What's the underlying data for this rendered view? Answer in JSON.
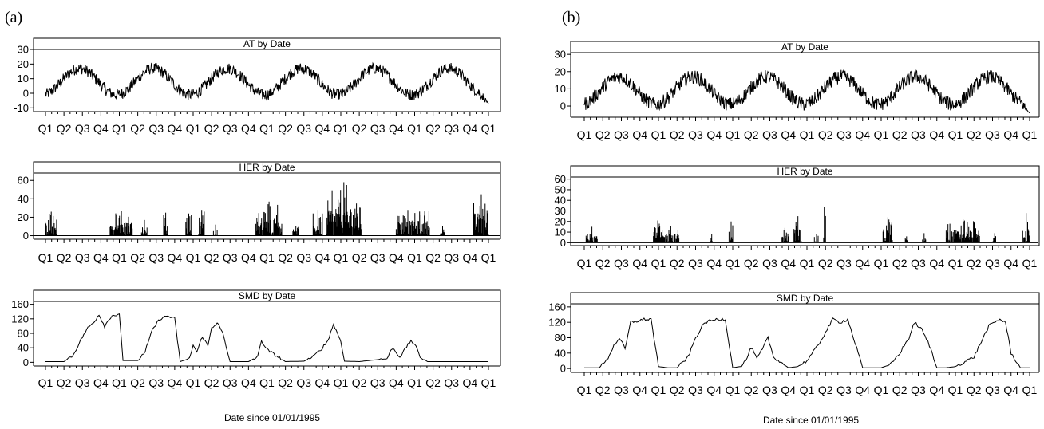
{
  "figure": {
    "panels": [
      {
        "id": "a",
        "label": "(a)",
        "x_axis_caption": "Date since 01/01/1995",
        "charts": [
          {
            "key": "AT",
            "type": "line",
            "title": "AT by Date",
            "ylim": [
              -12,
              30
            ],
            "y_ticks": [
              "30",
              "20",
              "10",
              "0",
              "-10"
            ],
            "y_tick_values": [
              30,
              20,
              10,
              0,
              -10
            ],
            "x_tick_labels": [
              "Q1",
              "Q2",
              "Q3",
              "Q4",
              "Q1",
              "Q2",
              "Q3",
              "Q4",
              "Q1",
              "Q2",
              "Q3",
              "Q4",
              "Q1",
              "Q2",
              "Q3",
              "Q4",
              "Q1",
              "Q2",
              "Q3",
              "Q4",
              "Q1",
              "Q2",
              "Q3",
              "Q4",
              "Q1"
            ],
            "x_axis": "quarters, 1995 Q1 to 2001 Q1",
            "series_profile": {
              "kind": "seasonal",
              "mean": 8,
              "amplitude": 9,
              "noise": 4,
              "end_value": -7
            },
            "color": "#000000"
          },
          {
            "key": "HER",
            "type": "spikes",
            "title": "HER by Date",
            "ylim": [
              -3,
              68
            ],
            "y_ticks": [
              "60",
              "40",
              "20",
              "0"
            ],
            "y_tick_values": [
              60,
              40,
              20,
              0
            ],
            "x_tick_labels": [
              "Q1",
              "Q2",
              "Q3",
              "Q4",
              "Q1",
              "Q2",
              "Q3",
              "Q4",
              "Q1",
              "Q2",
              "Q3",
              "Q4",
              "Q1",
              "Q2",
              "Q3",
              "Q4",
              "Q1",
              "Q2",
              "Q3",
              "Q4",
              "Q1",
              "Q2",
              "Q3",
              "Q4",
              "Q1"
            ],
            "x_axis": "quarters, 1995 Q1 to 2001 Q1",
            "spike_bursts": [
              {
                "start_q": 0.0,
                "end_q": 0.6,
                "max": 26
              },
              {
                "start_q": 3.5,
                "end_q": 4.7,
                "max": 27
              },
              {
                "start_q": 5.2,
                "end_q": 5.5,
                "max": 17
              },
              {
                "start_q": 6.4,
                "end_q": 6.6,
                "max": 25
              },
              {
                "start_q": 7.6,
                "end_q": 7.9,
                "max": 24
              },
              {
                "start_q": 8.3,
                "end_q": 8.6,
                "max": 28
              },
              {
                "start_q": 9.1,
                "end_q": 9.3,
                "max": 12
              },
              {
                "start_q": 11.4,
                "end_q": 12.8,
                "max": 37
              },
              {
                "start_q": 13.4,
                "end_q": 13.7,
                "max": 10
              },
              {
                "start_q": 14.5,
                "end_q": 15.0,
                "max": 28
              },
              {
                "start_q": 15.2,
                "end_q": 17.1,
                "max": 58
              },
              {
                "start_q": 19.0,
                "end_q": 20.8,
                "max": 30
              },
              {
                "start_q": 21.4,
                "end_q": 21.6,
                "max": 10
              },
              {
                "start_q": 23.2,
                "end_q": 24.0,
                "max": 45
              }
            ],
            "color": "#000000"
          },
          {
            "key": "SMD",
            "type": "line",
            "title": "SMD by Date",
            "ylim": [
              -8,
              168
            ],
            "y_ticks": [
              "160",
              "120",
              "80",
              "40",
              "0"
            ],
            "y_tick_values": [
              160,
              120,
              80,
              40,
              0
            ],
            "x_tick_labels": [
              "Q1",
              "Q2",
              "Q3",
              "Q4",
              "Q1",
              "Q2",
              "Q3",
              "Q4",
              "Q1",
              "Q2",
              "Q3",
              "Q4",
              "Q1",
              "Q2",
              "Q3",
              "Q4",
              "Q1",
              "Q2",
              "Q3",
              "Q4",
              "Q1",
              "Q2",
              "Q3",
              "Q4",
              "Q1"
            ],
            "x_axis": "quarters, 1995 Q1 to 2001 Q1",
            "x": [
              0,
              1.0,
              1.5,
              2.0,
              2.3,
              2.6,
              2.9,
              3.2,
              3.6,
              4.0,
              4.2,
              5.0,
              5.4,
              5.8,
              6.2,
              6.6,
              7.0,
              7.3,
              7.8,
              8.0,
              8.2,
              8.5,
              8.8,
              9.0,
              9.3,
              9.6,
              9.8,
              10.0,
              11.0,
              11.5,
              11.7,
              12.0,
              12.3,
              12.6,
              13.0,
              14.0,
              14.5,
              15.0,
              15.3,
              15.6,
              15.9,
              16.0,
              16.2,
              17.0,
              18.5,
              18.8,
              19.2,
              19.4,
              19.8,
              20.0,
              20.3,
              20.7,
              21.0,
              21.2,
              22.0,
              23.0,
              24.0
            ],
            "y": [
              2,
              2,
              20,
              70,
              95,
              110,
              132,
              100,
              130,
              130,
              5,
              5,
              30,
              90,
              120,
              128,
              120,
              2,
              10,
              48,
              28,
              72,
              45,
              95,
              110,
              80,
              40,
              2,
              2,
              15,
              60,
              35,
              25,
              15,
              2,
              3,
              15,
              40,
              60,
              105,
              70,
              60,
              3,
              2,
              10,
              40,
              15,
              30,
              60,
              50,
              15,
              2,
              2,
              2,
              2,
              2,
              2
            ],
            "color": "#000000"
          }
        ]
      },
      {
        "id": "b",
        "label": "(b)",
        "x_axis_caption": "Date since 01/01/1995",
        "charts": [
          {
            "key": "AT",
            "type": "line",
            "title": "AT by Date",
            "ylim": [
              -6,
              31
            ],
            "y_ticks": [
              "30",
              "20",
              "10",
              "0"
            ],
            "y_tick_values": [
              30,
              20,
              10,
              0
            ],
            "x_tick_labels": [
              "Q1",
              "Q2",
              "Q3",
              "Q4",
              "Q1",
              "Q2",
              "Q3",
              "Q4",
              "Q1",
              "Q2",
              "Q3",
              "Q4",
              "Q1",
              "Q2",
              "Q3",
              "Q4",
              "Q1",
              "Q2",
              "Q3",
              "Q4",
              "Q1",
              "Q2",
              "Q3",
              "Q4",
              "Q1"
            ],
            "x_axis": "quarters, 1995 Q1 to 2001 Q1",
            "series_profile": {
              "kind": "seasonal",
              "mean": 9,
              "amplitude": 8,
              "noise": 4,
              "end_value": -4
            },
            "color": "#000000"
          },
          {
            "key": "HER",
            "type": "spikes",
            "title": "HER by Date",
            "ylim": [
              -2,
              62
            ],
            "y_ticks": [
              "60",
              "50",
              "40",
              "30",
              "20",
              "10",
              "0"
            ],
            "y_tick_values": [
              60,
              50,
              40,
              30,
              20,
              10,
              0
            ],
            "x_tick_labels": [
              "Q1",
              "Q2",
              "Q3",
              "Q4",
              "Q1",
              "Q2",
              "Q3",
              "Q4",
              "Q1",
              "Q2",
              "Q3",
              "Q4",
              "Q1",
              "Q2",
              "Q3",
              "Q4",
              "Q1",
              "Q2",
              "Q3",
              "Q4",
              "Q1",
              "Q2",
              "Q3",
              "Q4",
              "Q1"
            ],
            "x_axis": "quarters, 1995 Q1 to 2001 Q1",
            "spike_bursts": [
              {
                "start_q": 0.1,
                "end_q": 0.7,
                "max": 15
              },
              {
                "start_q": 3.7,
                "end_q": 4.2,
                "max": 21
              },
              {
                "start_q": 4.2,
                "end_q": 5.1,
                "max": 16
              },
              {
                "start_q": 6.8,
                "end_q": 6.9,
                "max": 8
              },
              {
                "start_q": 7.8,
                "end_q": 8.0,
                "max": 20
              },
              {
                "start_q": 10.6,
                "end_q": 11.0,
                "max": 14
              },
              {
                "start_q": 11.3,
                "end_q": 11.7,
                "max": 25
              },
              {
                "start_q": 12.4,
                "end_q": 12.6,
                "max": 8
              },
              {
                "start_q": 12.9,
                "end_q": 13.0,
                "max": 51
              },
              {
                "start_q": 16.1,
                "end_q": 16.6,
                "max": 24
              },
              {
                "start_q": 17.3,
                "end_q": 17.4,
                "max": 6
              },
              {
                "start_q": 18.2,
                "end_q": 18.4,
                "max": 9
              },
              {
                "start_q": 19.5,
                "end_q": 21.3,
                "max": 22
              },
              {
                "start_q": 22.0,
                "end_q": 22.2,
                "max": 9
              },
              {
                "start_q": 23.6,
                "end_q": 24.0,
                "max": 28
              }
            ],
            "color": "#000000"
          },
          {
            "key": "SMD",
            "type": "line",
            "title": "SMD by Date",
            "ylim": [
              -8,
              168
            ],
            "y_ticks": [
              "160",
              "120",
              "80",
              "40",
              "0"
            ],
            "y_tick_values": [
              160,
              120,
              80,
              40,
              0
            ],
            "x_tick_labels": [
              "Q1",
              "Q2",
              "Q3",
              "Q4",
              "Q1",
              "Q2",
              "Q3",
              "Q4",
              "Q1",
              "Q2",
              "Q3",
              "Q4",
              "Q1",
              "Q2",
              "Q3",
              "Q4",
              "Q1",
              "Q2",
              "Q3",
              "Q4",
              "Q1",
              "Q2",
              "Q3",
              "Q4",
              "Q1"
            ],
            "x_axis": "quarters, 1995 Q1 to 2001 Q1",
            "x": [
              0,
              0.8,
              1.2,
              1.6,
              1.9,
              2.2,
              2.5,
              3.3,
              3.6,
              4.0,
              4.5,
              5.0,
              5.6,
              6.0,
              6.5,
              7.2,
              7.6,
              8.0,
              8.4,
              8.7,
              9.0,
              9.3,
              9.6,
              9.9,
              10.2,
              11.0,
              11.5,
              12.0,
              12.6,
              13.4,
              13.8,
              14.2,
              15.0,
              16.0,
              16.5,
              17.0,
              17.5,
              17.8,
              18.2,
              18.6,
              19.0,
              19.5,
              20.0,
              20.6,
              21.0,
              21.4,
              21.8,
              22.4,
              22.7,
              23.0,
              23.5,
              24.0
            ],
            "y": [
              2,
              2,
              20,
              60,
              80,
              50,
              120,
              128,
              128,
              5,
              2,
              2,
              30,
              80,
              120,
              128,
              128,
              2,
              5,
              20,
              55,
              25,
              50,
              80,
              30,
              2,
              5,
              20,
              60,
              128,
              120,
              128,
              2,
              2,
              10,
              40,
              80,
              120,
              100,
              60,
              2,
              2,
              5,
              20,
              30,
              70,
              110,
              128,
              120,
              40,
              2,
              2
            ],
            "color": "#000000"
          }
        ]
      }
    ]
  }
}
